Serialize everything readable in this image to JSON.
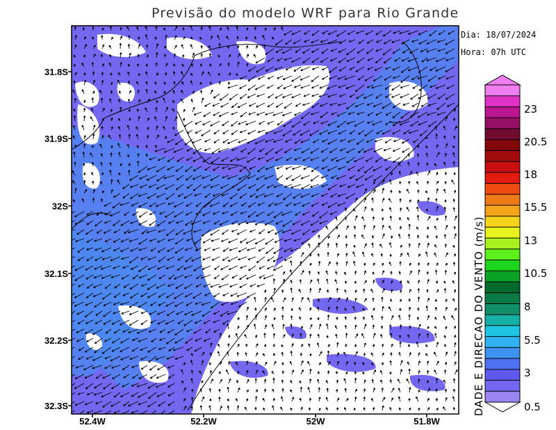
{
  "title": "Previsão do modelo WRF para Rio Grande",
  "info": {
    "date": "Dia: 18/07/2024",
    "time": "Hora: 07h UTC"
  },
  "map": {
    "lat_labels": [
      "31.8S",
      "31.9S",
      "32S",
      "32.1S",
      "32.2S",
      "32.3S"
    ],
    "lon_labels": [
      "52.4W",
      "52.2W",
      "52W",
      "51.8W"
    ]
  },
  "colorbar": {
    "title": "VELOCIDADE E DIRECAO DO VENTO (m/s)",
    "visible_title": "DADE E DIRECAO DO VENTO (m/s)",
    "ticks": [
      "0.5",
      "3",
      "5.5",
      "8",
      "10.5",
      "13",
      "15.5",
      "18",
      "20.5",
      "23"
    ],
    "colors": [
      "#9a84ef",
      "#7468f0",
      "#5e5af0",
      "#4f70f0",
      "#3d92f0",
      "#2fb2ef",
      "#1fc6e4",
      "#16b0a6",
      "#10906a",
      "#097a46",
      "#006a2a",
      "#09a225",
      "#1fd61f",
      "#5ef01d",
      "#a9f21d",
      "#e8f21d",
      "#f6d31b",
      "#f4a519",
      "#f07a15",
      "#ee4a12",
      "#e41c10",
      "#c80e0e",
      "#a20b0b",
      "#800808",
      "#700a30",
      "#941067",
      "#b9168f",
      "#de33c4",
      "#f07ef0"
    ]
  }
}
